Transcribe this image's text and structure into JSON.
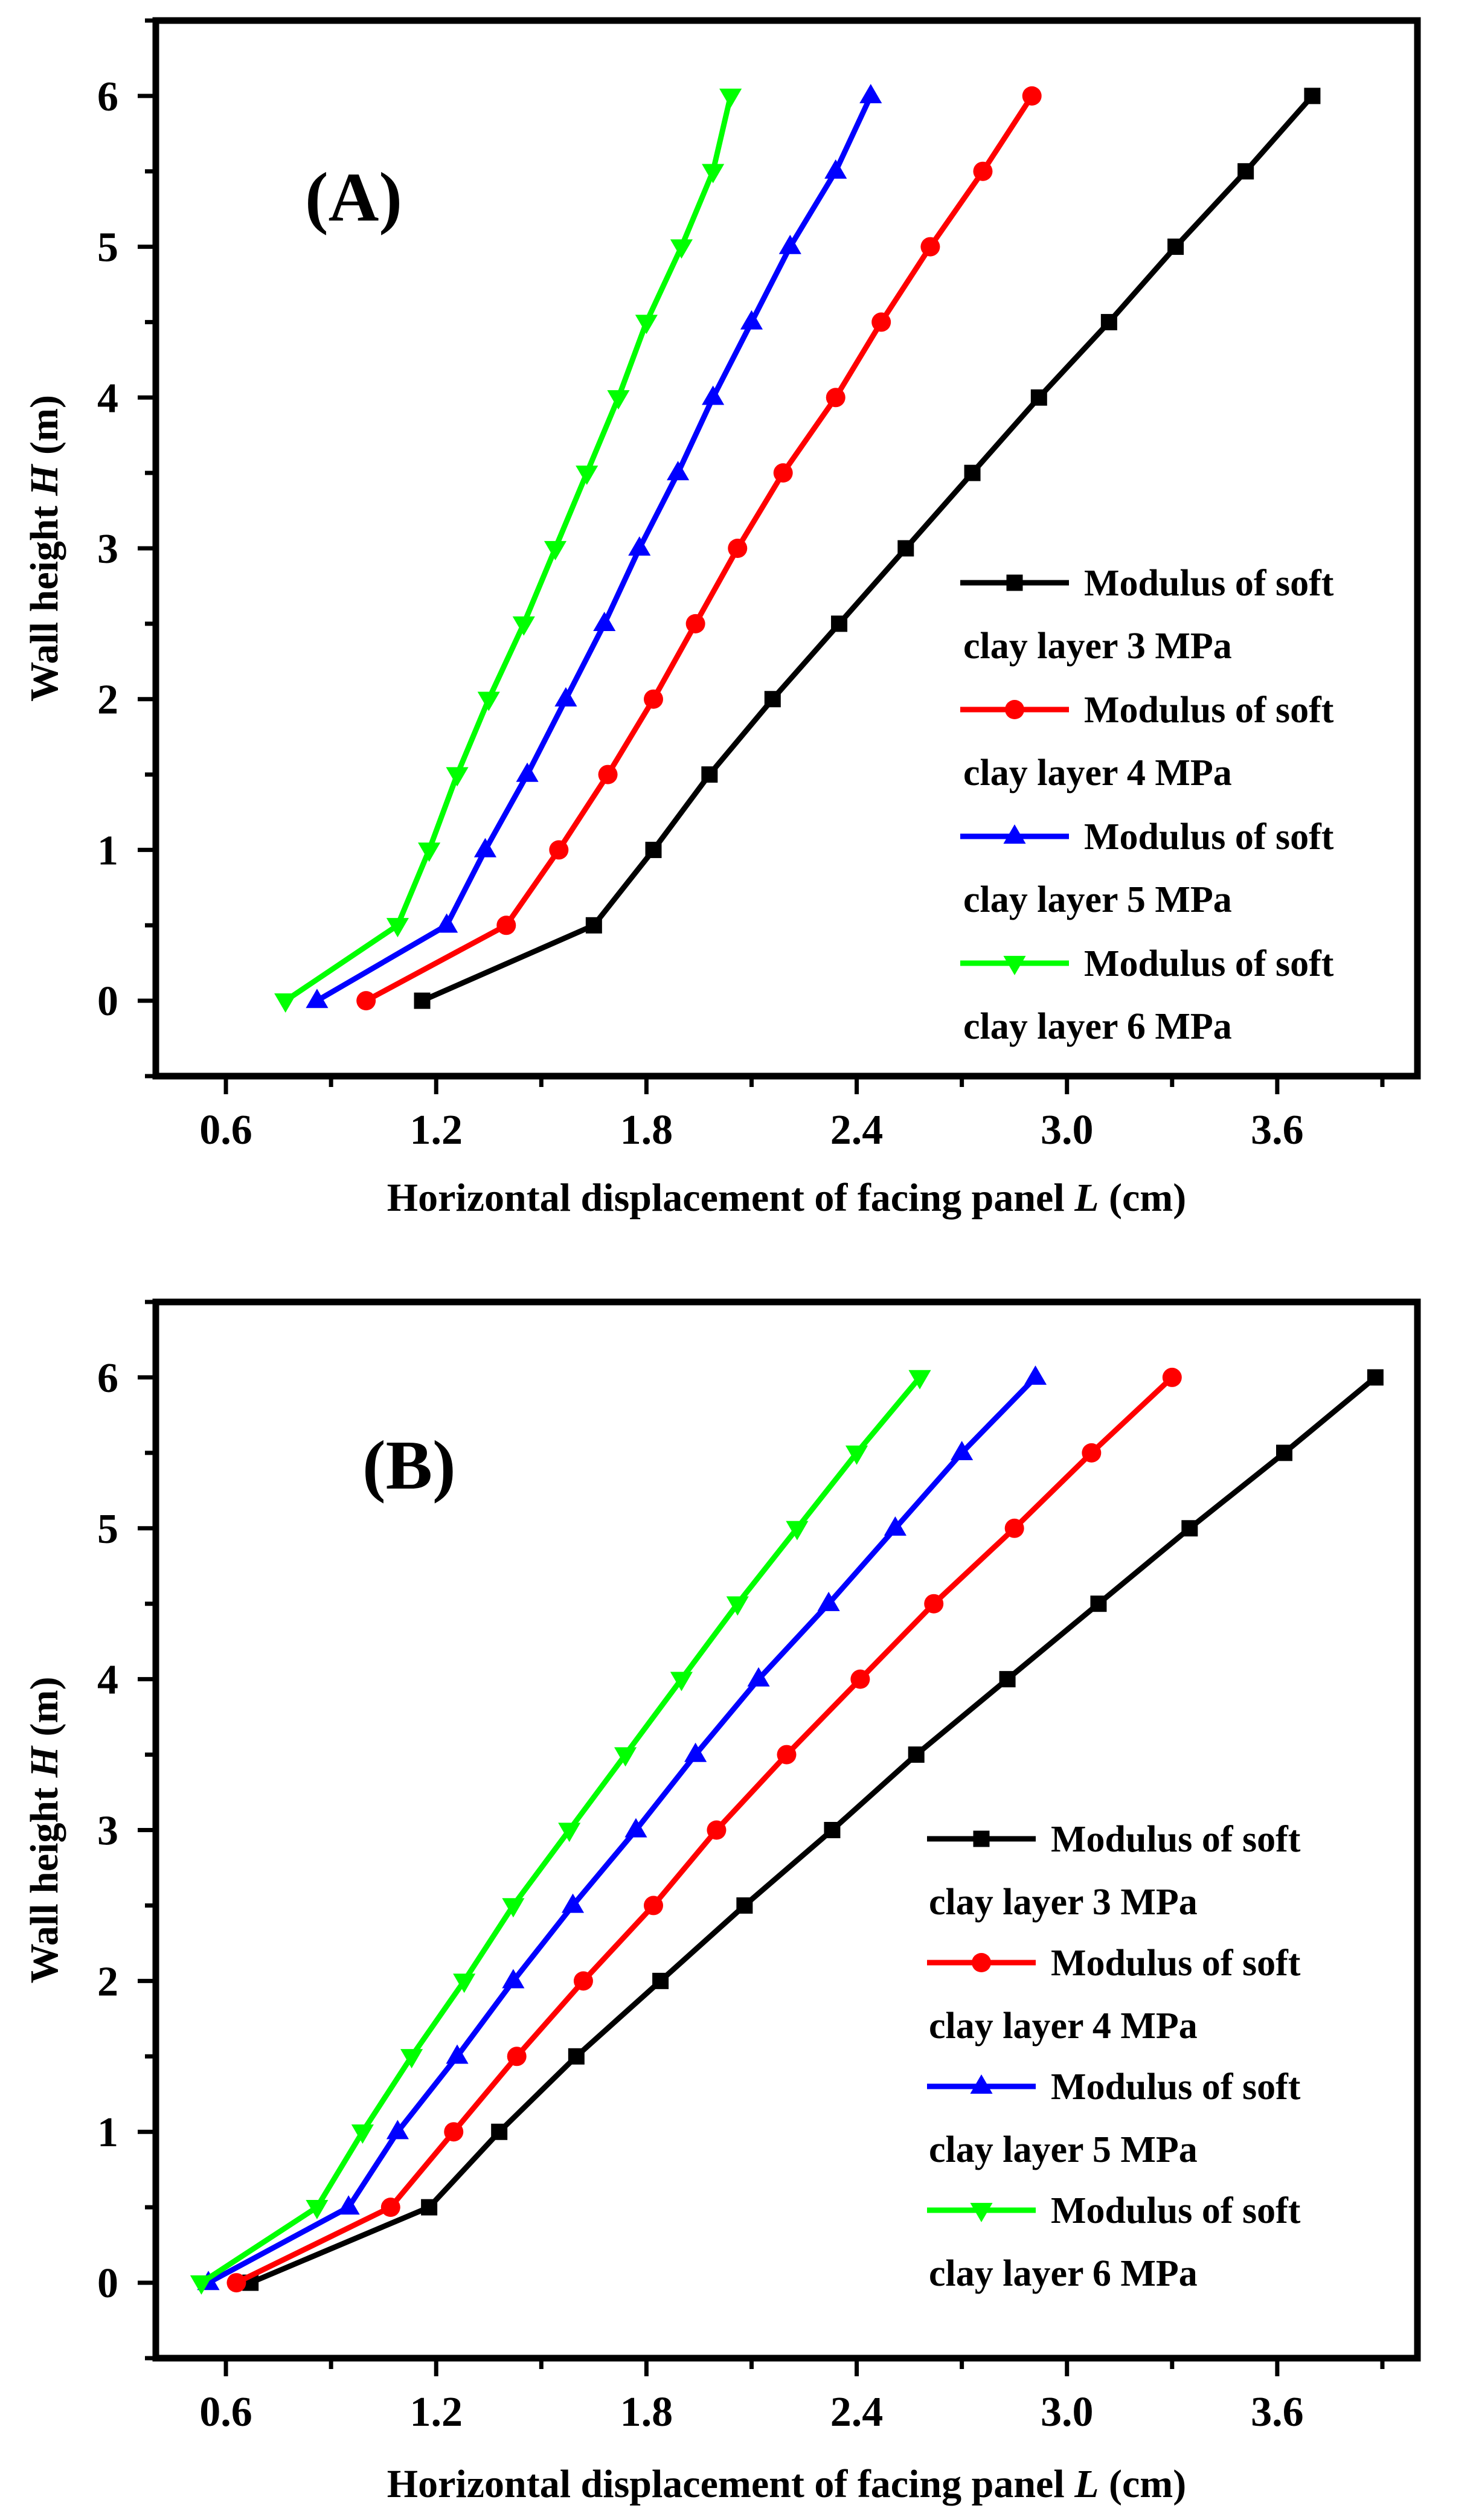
{
  "chart_data": [
    {
      "type": "line",
      "panel_label": "(A)",
      "xlabel": "Horizontal displacement of facing panel",
      "xlabel_symbol": "L",
      "xlabel_unit": "(cm)",
      "ylabel": "Wall height",
      "ylabel_symbol": "H",
      "ylabel_unit": "(m)",
      "xlim": [
        0.4,
        4.0
      ],
      "ylim": [
        -0.5,
        6.5
      ],
      "xticks": [
        "0.6",
        "1.2",
        "1.8",
        "2.4",
        "3.0",
        "3.6"
      ],
      "xtick_values": [
        0.6,
        1.2,
        1.8,
        2.4,
        3.0,
        3.6
      ],
      "yticks": [
        "0",
        "1",
        "2",
        "3",
        "4",
        "5",
        "6"
      ],
      "ytick_values": [
        0,
        1,
        2,
        3,
        4,
        5,
        6
      ],
      "legend_position": "right",
      "series": [
        {
          "name_line1": "Modulus of soft",
          "name_line2": "clay layer 3 MPa",
          "color": "#000000",
          "marker": "square",
          "x": [
            1.16,
            1.65,
            1.82,
            1.98,
            2.16,
            2.35,
            2.54,
            2.73,
            2.92,
            3.12,
            3.31,
            3.51,
            3.7
          ],
          "y": [
            0,
            0.5,
            1,
            1.5,
            2,
            2.5,
            3,
            3.5,
            4,
            4.5,
            5,
            5.5,
            6
          ]
        },
        {
          "name_line1": "Modulus of soft",
          "name_line2": "clay layer 4 MPa",
          "color": "#ff0000",
          "marker": "circle",
          "x": [
            1.0,
            1.4,
            1.55,
            1.69,
            1.82,
            1.94,
            2.06,
            2.19,
            2.34,
            2.47,
            2.61,
            2.76,
            2.9
          ],
          "y": [
            0,
            0.5,
            1,
            1.5,
            2,
            2.5,
            3,
            3.5,
            4,
            4.5,
            5,
            5.5,
            6
          ]
        },
        {
          "name_line1": "Modulus of soft",
          "name_line2": "clay layer 5 MPa",
          "color": "#0000ff",
          "marker": "triangle-up",
          "x": [
            0.86,
            1.23,
            1.34,
            1.46,
            1.57,
            1.68,
            1.78,
            1.89,
            1.99,
            2.1,
            2.21,
            2.34,
            2.44
          ],
          "y": [
            0,
            0.5,
            1,
            1.5,
            2,
            2.5,
            3,
            3.5,
            4,
            4.5,
            5,
            5.5,
            6
          ]
        },
        {
          "name_line1": "Modulus of soft",
          "name_line2": "clay layer 6 MPa",
          "color": "#00ff00",
          "marker": "triangle-down",
          "x": [
            0.77,
            1.09,
            1.18,
            1.26,
            1.35,
            1.45,
            1.54,
            1.63,
            1.72,
            1.8,
            1.9,
            1.99,
            2.04
          ],
          "y": [
            0,
            0.5,
            1,
            1.5,
            2,
            2.5,
            3,
            3.5,
            4,
            4.5,
            5,
            5.5,
            6
          ]
        }
      ]
    },
    {
      "type": "line",
      "panel_label": "(B)",
      "xlabel": "Horizontal displacement of facing panel",
      "xlabel_symbol": "L",
      "xlabel_unit": "(cm)",
      "ylabel": "Wall height",
      "ylabel_symbol": "H",
      "ylabel_unit": "(m)",
      "xlim": [
        0.4,
        4.0
      ],
      "ylim": [
        -0.5,
        6.5
      ],
      "xticks": [
        "0.6",
        "1.2",
        "1.8",
        "2.4",
        "3.0",
        "3.6"
      ],
      "xtick_values": [
        0.6,
        1.2,
        1.8,
        2.4,
        3.0,
        3.6
      ],
      "yticks": [
        "0",
        "1",
        "2",
        "3",
        "4",
        "5",
        "6"
      ],
      "ytick_values": [
        0,
        1,
        2,
        3,
        4,
        5,
        6
      ],
      "legend_position": "bottom-right",
      "series": [
        {
          "name_line1": "Modulus of soft",
          "name_line2": "clay layer 3 MPa",
          "color": "#000000",
          "marker": "square",
          "x": [
            0.67,
            1.18,
            1.38,
            1.6,
            1.84,
            2.08,
            2.33,
            2.57,
            2.83,
            3.09,
            3.35,
            3.62,
            3.88
          ],
          "y": [
            0,
            0.5,
            1,
            1.5,
            2,
            2.5,
            3,
            3.5,
            4,
            4.5,
            5,
            5.5,
            6
          ]
        },
        {
          "name_line1": "Modulus of soft",
          "name_line2": "clay layer 4 MPa",
          "color": "#ff0000",
          "marker": "circle",
          "x": [
            0.63,
            1.07,
            1.25,
            1.43,
            1.62,
            1.82,
            2.0,
            2.2,
            2.41,
            2.62,
            2.85,
            3.07,
            3.3
          ],
          "y": [
            0,
            0.5,
            1,
            1.5,
            2,
            2.5,
            3,
            3.5,
            4,
            4.5,
            5,
            5.5,
            6
          ]
        },
        {
          "name_line1": "Modulus of soft",
          "name_line2": "clay layer 5 MPa",
          "color": "#0000ff",
          "marker": "triangle-up",
          "x": [
            0.55,
            0.95,
            1.09,
            1.26,
            1.42,
            1.59,
            1.77,
            1.94,
            2.12,
            2.32,
            2.51,
            2.7,
            2.91
          ],
          "y": [
            0,
            0.5,
            1,
            1.5,
            2,
            2.5,
            3,
            3.5,
            4,
            4.5,
            5,
            5.5,
            6
          ]
        },
        {
          "name_line1": "Modulus of soft",
          "name_line2": "clay layer 6 MPa",
          "color": "#00ff00",
          "marker": "triangle-down",
          "x": [
            0.53,
            0.86,
            0.99,
            1.13,
            1.28,
            1.42,
            1.58,
            1.74,
            1.9,
            2.06,
            2.23,
            2.4,
            2.58
          ],
          "y": [
            0,
            0.5,
            1,
            1.5,
            2,
            2.5,
            3,
            3.5,
            4,
            4.5,
            5,
            5.5,
            6
          ]
        }
      ]
    }
  ]
}
